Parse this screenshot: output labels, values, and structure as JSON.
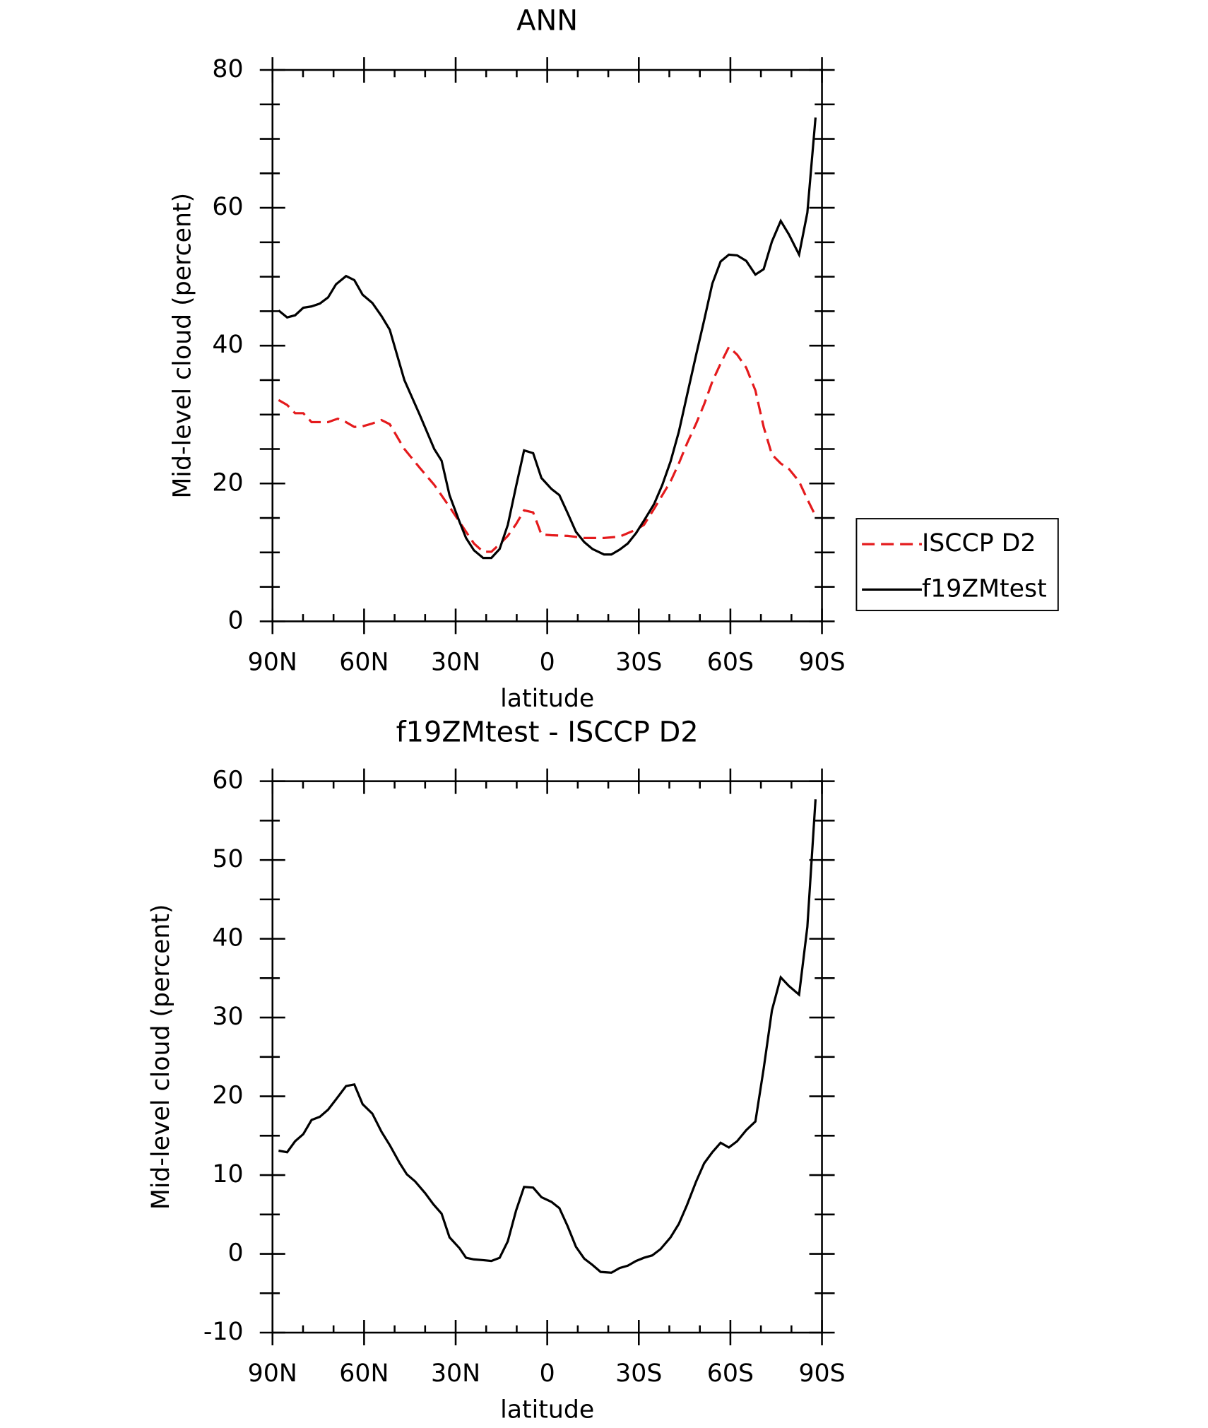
{
  "chart_data": [
    {
      "type": "line",
      "title": "ANN",
      "xlabel": "latitude",
      "ylabel": "Mid-level cloud (percent)",
      "xlim": [
        90,
        -90
      ],
      "xticks": [
        {
          "value": 90,
          "label": "90N"
        },
        {
          "value": 60,
          "label": "60N"
        },
        {
          "value": 30,
          "label": "30N"
        },
        0,
        {
          "value": -30,
          "label": "30S"
        },
        {
          "value": -60,
          "label": "60S"
        },
        {
          "value": -90,
          "label": "90S"
        }
      ],
      "xminorticks": [
        80,
        70,
        50,
        40,
        20,
        10,
        -10,
        -20,
        -40,
        -50,
        -70,
        -80
      ],
      "ylim": [
        0,
        80
      ],
      "yticks": [
        0,
        20,
        40,
        60,
        80
      ],
      "yminorticks": [
        5,
        10,
        15,
        25,
        30,
        35,
        45,
        50,
        55,
        65,
        70,
        75
      ],
      "legend": "right",
      "series": [
        {
          "name": "ISCCP D2",
          "color": "#e41a1c",
          "line_style": "dashed",
          "x": [
            88,
            85.2,
            82.6,
            79.9,
            77.2,
            74.5,
            71.8,
            68.6,
            65.9,
            63.2,
            60.5,
            57.3,
            54.3,
            51.6,
            46.8,
            41.8,
            37.0,
            32.0,
            28.7,
            24.0,
            21.0,
            18.3,
            15.6,
            12.9,
            10.2,
            7.6,
            4.6,
            1.9,
            -1.4,
            -6.7,
            -12.1,
            -18.6,
            -23.7,
            -29.1,
            -31.7,
            -35.0,
            -37.7,
            -40.4,
            -43.1,
            -45.8,
            -48.8,
            -51.4,
            -54.1,
            -56.8,
            -59.5,
            -62.2,
            -65.2,
            -68.2,
            -70.9,
            -73.6,
            -76.5,
            -79.2,
            -82.5,
            -85.2,
            -87.9
          ],
          "values": [
            32.1,
            31.4,
            30.2,
            30.2,
            28.9,
            28.9,
            28.9,
            29.4,
            28.9,
            28.2,
            28.3,
            28.7,
            29.2,
            28.6,
            25.0,
            22.3,
            19.8,
            16.6,
            14.4,
            11.3,
            10.1,
            10.1,
            11.2,
            12.4,
            14.1,
            16.1,
            15.8,
            12.6,
            12.5,
            12.4,
            12.1,
            12.1,
            12.3,
            13.3,
            14.0,
            16.3,
            18.3,
            20.3,
            22.9,
            25.8,
            28.7,
            31.5,
            34.8,
            37.4,
            39.8,
            38.7,
            36.8,
            33.5,
            28.2,
            24.2,
            22.9,
            22.1,
            20.3,
            17.7,
            15.3
          ]
        },
        {
          "name": "f19ZMtest",
          "color": "#000000",
          "line_style": "solid",
          "x": [
            88,
            85.2,
            82.6,
            79.9,
            77.2,
            74.5,
            71.8,
            69.2,
            65.9,
            63.2,
            60.5,
            57.3,
            54.3,
            51.6,
            46.8,
            41.8,
            37.0,
            34.6,
            32.0,
            28.7,
            26.6,
            24.0,
            21.0,
            18.3,
            15.6,
            12.9,
            10.2,
            7.6,
            4.6,
            1.9,
            -1.4,
            -4.0,
            -6.7,
            -9.4,
            -12.1,
            -14.8,
            -18.6,
            -21.0,
            -23.7,
            -26.4,
            -29.1,
            -31.7,
            -35.0,
            -37.7,
            -40.4,
            -43.1,
            -45.8,
            -48.8,
            -51.4,
            -54.1,
            -56.8,
            -59.5,
            -62.2,
            -65.2,
            -68.2,
            -70.9,
            -73.6,
            -76.5,
            -79.2,
            -82.5,
            -85.2,
            -87.9
          ],
          "values": [
            45.1,
            44.1,
            44.4,
            45.5,
            45.7,
            46.1,
            47.0,
            48.9,
            50.1,
            49.5,
            47.4,
            46.2,
            44.3,
            42.3,
            35.0,
            30.0,
            25.0,
            23.3,
            18.3,
            14.4,
            12.1,
            10.3,
            9.2,
            9.2,
            10.5,
            14.0,
            19.6,
            24.8,
            24.4,
            20.8,
            19.2,
            18.3,
            15.7,
            13.0,
            11.5,
            10.5,
            9.7,
            9.7,
            10.4,
            11.3,
            12.8,
            14.6,
            17.0,
            19.8,
            23.2,
            27.5,
            32.8,
            38.7,
            43.7,
            49.0,
            52.2,
            53.2,
            53.1,
            52.3,
            50.3,
            51.1,
            55.1,
            58.1,
            56.1,
            53.2,
            59.3,
            73.1
          ]
        }
      ]
    },
    {
      "type": "line",
      "title": "f19ZMtest - ISCCP D2",
      "xlabel": "latitude",
      "ylabel": "Mid-level cloud (percent)",
      "xlim": [
        90,
        -90
      ],
      "xticks": [
        {
          "value": 90,
          "label": "90N"
        },
        {
          "value": 60,
          "label": "60N"
        },
        {
          "value": 30,
          "label": "30N"
        },
        0,
        {
          "value": -30,
          "label": "30S"
        },
        {
          "value": -60,
          "label": "60S"
        },
        {
          "value": -90,
          "label": "90S"
        }
      ],
      "xminorticks": [
        80,
        70,
        50,
        40,
        20,
        10,
        -10,
        -20,
        -40,
        -50,
        -70,
        -80
      ],
      "ylim": [
        -10,
        60
      ],
      "yticks": [
        -10,
        0,
        10,
        20,
        30,
        40,
        50,
        60
      ],
      "yminorticks": [
        -5,
        5,
        15,
        25,
        35,
        45,
        55
      ],
      "series": [
        {
          "color": "#000000",
          "line_style": "solid",
          "x": [
            88,
            85.2,
            82.6,
            79.9,
            77.2,
            74.5,
            71.8,
            69.2,
            65.9,
            63.2,
            60.5,
            57.3,
            54.3,
            51.6,
            48.3,
            46.0,
            43.3,
            40.0,
            37.3,
            34.6,
            32.0,
            28.7,
            26.6,
            24.0,
            21.0,
            18.3,
            15.6,
            12.9,
            10.2,
            7.6,
            4.6,
            1.9,
            -1.4,
            -4.0,
            -6.7,
            -9.4,
            -12.1,
            -14.8,
            -17.5,
            -21.0,
            -23.7,
            -26.4,
            -29.1,
            -31.7,
            -34.4,
            -37.1,
            -40.4,
            -43.1,
            -45.8,
            -48.8,
            -51.4,
            -54.1,
            -56.8,
            -59.5,
            -62.2,
            -65.2,
            -68.2,
            -70.9,
            -73.6,
            -76.5,
            -79.2,
            -82.5,
            -85.2,
            -87.9
          ],
          "values": [
            13.1,
            12.9,
            14.3,
            15.2,
            17.0,
            17.4,
            18.3,
            19.6,
            21.3,
            21.5,
            19.0,
            17.8,
            15.5,
            13.8,
            11.5,
            10.1,
            9.2,
            7.7,
            6.3,
            5.1,
            2.1,
            0.7,
            -0.5,
            -0.7,
            -0.8,
            -0.9,
            -0.5,
            1.6,
            5.5,
            8.5,
            8.4,
            7.2,
            6.6,
            5.8,
            3.5,
            0.9,
            -0.6,
            -1.4,
            -2.3,
            -2.4,
            -1.8,
            -1.5,
            -0.9,
            -0.5,
            -0.2,
            0.6,
            2.1,
            3.8,
            6.2,
            9.2,
            11.5,
            12.9,
            14.1,
            13.5,
            14.3,
            15.7,
            16.8,
            23.5,
            30.9,
            35.1,
            34.0,
            32.9,
            41.5,
            57.7
          ]
        }
      ]
    }
  ]
}
